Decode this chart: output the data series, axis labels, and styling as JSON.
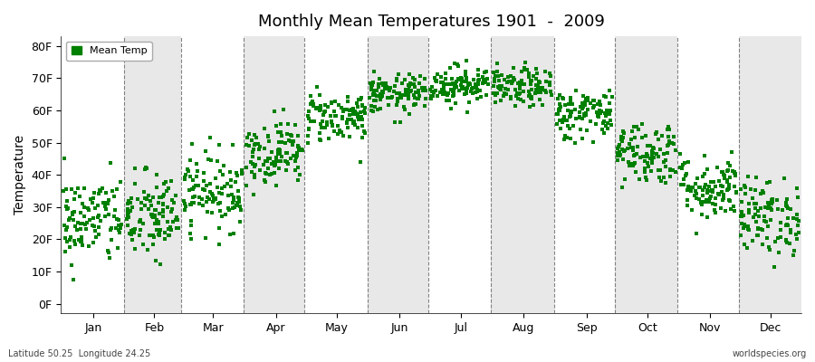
{
  "title": "Monthly Mean Temperatures 1901  -  2009",
  "ylabel": "Temperature",
  "xlabel_months": [
    "Jan",
    "Feb",
    "Mar",
    "Apr",
    "May",
    "Jun",
    "Jul",
    "Aug",
    "Sep",
    "Oct",
    "Nov",
    "Dec"
  ],
  "ytick_labels": [
    "0F",
    "10F",
    "20F",
    "30F",
    "40F",
    "50F",
    "60F",
    "70F",
    "80F"
  ],
  "ytick_values": [
    0,
    10,
    20,
    30,
    40,
    50,
    60,
    70,
    80
  ],
  "ylim": [
    -3,
    83
  ],
  "xlim": [
    0,
    365
  ],
  "legend_label": "Mean Temp",
  "marker_color": "#008000",
  "marker_size": 3,
  "background_colors": [
    "#ffffff",
    "#e8e8e8"
  ],
  "footer_left": "Latitude 50.25  Longitude 24.25",
  "footer_right": "worldspecies.org",
  "monthly_mean_F": [
    26,
    27,
    35,
    47,
    58,
    65,
    68,
    67,
    59,
    47,
    36,
    27
  ],
  "monthly_std_F": [
    7,
    7,
    6,
    5,
    4,
    3,
    3,
    3,
    4,
    5,
    5,
    6
  ],
  "num_years": 109,
  "seed": 42,
  "month_day_starts": [
    1,
    32,
    60,
    91,
    121,
    152,
    182,
    213,
    244,
    274,
    305,
    335
  ],
  "month_day_ends": [
    31,
    59,
    90,
    120,
    151,
    181,
    212,
    243,
    273,
    304,
    334,
    365
  ],
  "month_label_days": [
    16,
    46,
    75,
    106,
    136,
    167,
    197,
    228,
    259,
    289,
    320,
    350
  ]
}
